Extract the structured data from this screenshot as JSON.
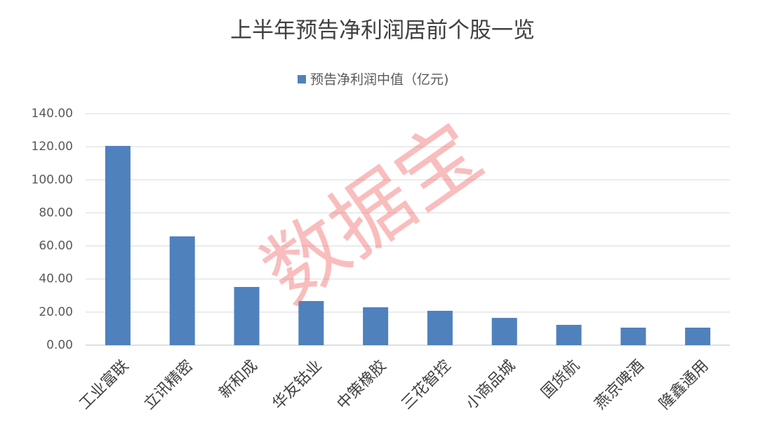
{
  "chart_data": {
    "type": "bar",
    "title": "上半年预告净利润居前个股一览",
    "series": [
      {
        "name": "预告净利润中值（亿元)",
        "color": "#4f81bd",
        "values": [
          120.5,
          65.8,
          35.2,
          26.7,
          22.9,
          20.8,
          16.5,
          12.3,
          10.6,
          10.6
        ]
      }
    ],
    "categories": [
      "工业富联",
      "立讯精密",
      "新和成",
      "华友钴业",
      "中策橡胶",
      "三花智控",
      "小商品城",
      "国货航",
      "燕京啤酒",
      "隆鑫通用"
    ],
    "ylim": [
      0,
      140
    ],
    "yticks": [
      {
        "value": 0,
        "label": "0.00"
      },
      {
        "value": 20,
        "label": "20.00"
      },
      {
        "value": 40,
        "label": "40.00"
      },
      {
        "value": 60,
        "label": "60.00"
      },
      {
        "value": 80,
        "label": "80.00"
      },
      {
        "value": 100,
        "label": "100.00"
      },
      {
        "value": 120,
        "label": "120.00"
      },
      {
        "value": 140,
        "label": "140.00"
      }
    ],
    "grid": true,
    "legend": "top",
    "watermark": "数据宝"
  }
}
